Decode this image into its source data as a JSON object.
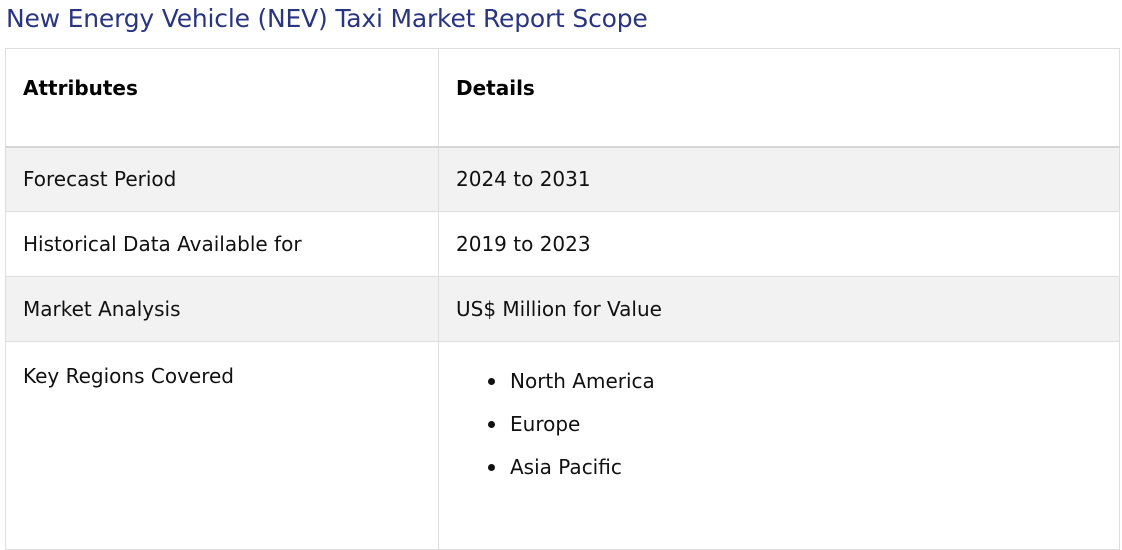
{
  "title": "New Energy Vehicle (NEV) Taxi Market Report Scope",
  "table": {
    "headers": {
      "attributes": "Attributes",
      "details": "Details"
    },
    "rows": [
      {
        "attribute": "Forecast Period",
        "detail": "2024 to 2031"
      },
      {
        "attribute": "Historical Data Available for",
        "detail": "2019 to 2023"
      },
      {
        "attribute": "Market Analysis",
        "detail": "US$ Million for Value"
      }
    ],
    "regions": {
      "attribute": "Key Regions Covered",
      "items": [
        "North America",
        "Europe",
        "Asia Pacific"
      ]
    }
  }
}
